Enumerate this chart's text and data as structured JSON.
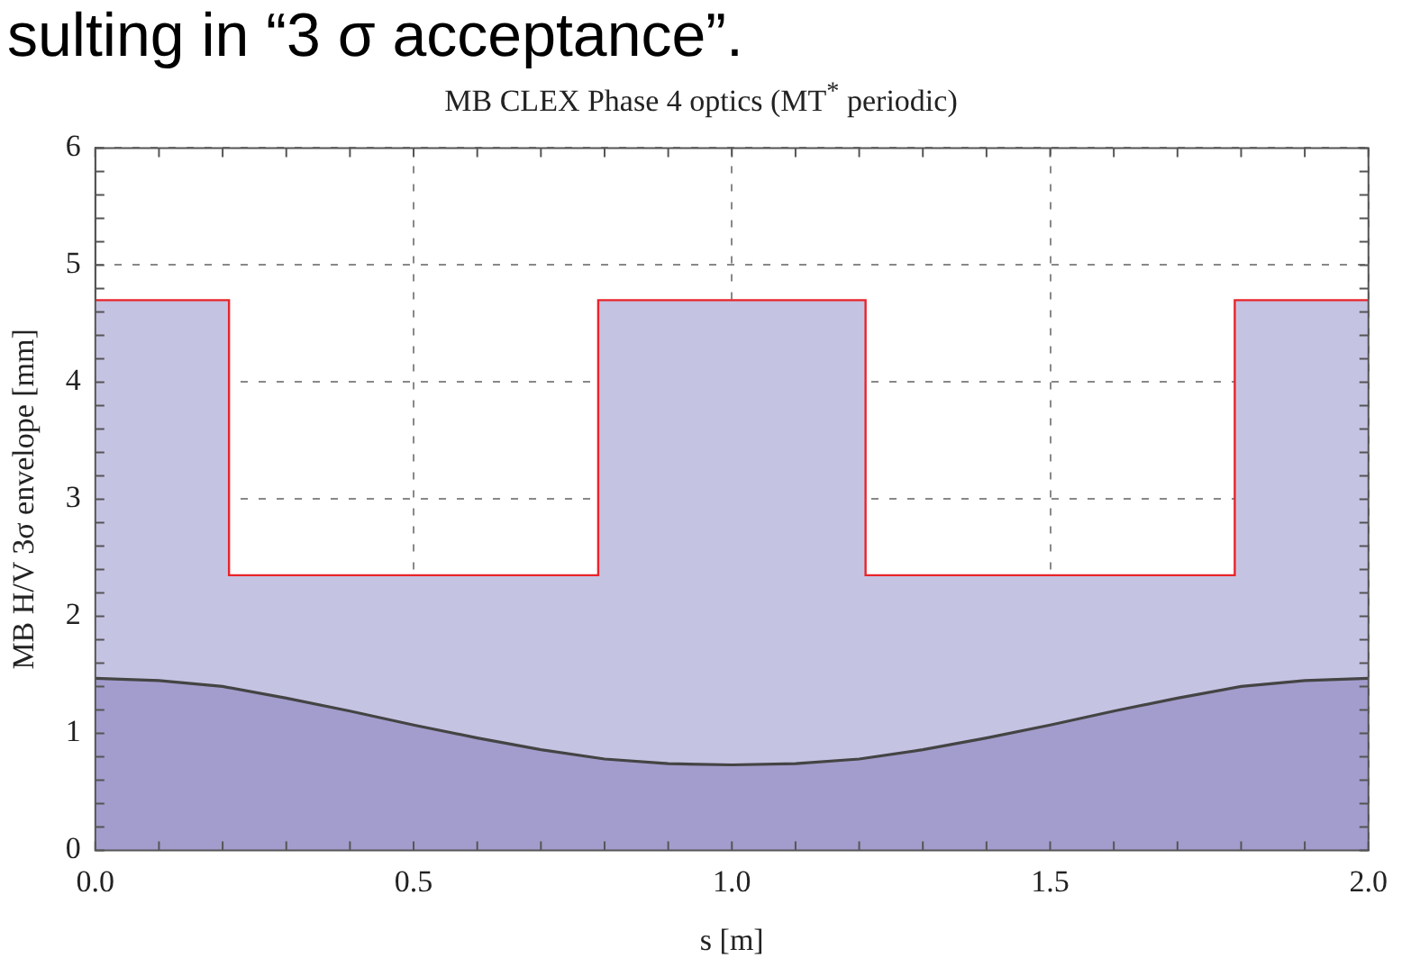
{
  "chart_data": {
    "type": "area",
    "title": "MB CLEX Phase 4 optics (MT$^{*}$ periodic)",
    "xlabel": "s [m]",
    "ylabel": "MB H/V 3σ envelope [mm]",
    "annotations": [
      "sulting in “3 σ acceptance”."
    ],
    "xlim": [
      0,
      2
    ],
    "ylim": [
      0,
      6
    ],
    "xticks": [
      {
        "value": 0,
        "label": "0.0"
      },
      {
        "value": 0.1,
        "label": null
      },
      {
        "value": 0.2,
        "label": null
      },
      {
        "value": 0.3,
        "label": null
      },
      {
        "value": 0.4,
        "label": null
      },
      {
        "value": 0.5,
        "label": "0.5"
      },
      {
        "value": 0.6,
        "label": null
      },
      {
        "value": 0.7,
        "label": null
      },
      {
        "value": 0.8,
        "label": null
      },
      {
        "value": 0.9,
        "label": null
      },
      {
        "value": 1,
        "label": "1.0"
      },
      {
        "value": 1.1,
        "label": null
      },
      {
        "value": 1.2,
        "label": null
      },
      {
        "value": 1.3,
        "label": null
      },
      {
        "value": 1.4,
        "label": null
      },
      {
        "value": 1.5,
        "label": "1.5"
      },
      {
        "value": 1.6,
        "label": null
      },
      {
        "value": 1.7,
        "label": null
      },
      {
        "value": 1.8,
        "label": null
      },
      {
        "value": 1.9,
        "label": null
      },
      {
        "value": 2,
        "label": "2.0"
      }
    ],
    "yticks": [
      0,
      {
        "value": 0.2,
        "label": null
      },
      {
        "value": 0.4,
        "label": null
      },
      {
        "value": 0.6,
        "label": null
      },
      {
        "value": 0.8,
        "label": null
      },
      1,
      {
        "value": 1.2,
        "label": null
      },
      {
        "value": 1.4,
        "label": null
      },
      {
        "value": 1.6,
        "label": null
      },
      {
        "value": 1.8,
        "label": null
      },
      2,
      {
        "value": 2.2,
        "label": null
      },
      {
        "value": 2.4,
        "label": null
      },
      {
        "value": 2.6,
        "label": null
      },
      {
        "value": 2.8,
        "label": null
      },
      3,
      {
        "value": 3.2,
        "label": null
      },
      {
        "value": 3.4,
        "label": null
      },
      {
        "value": 3.6,
        "label": null
      },
      {
        "value": 3.8,
        "label": null
      },
      4,
      {
        "value": 4.2,
        "label": null
      },
      {
        "value": 4.4,
        "label": null
      },
      {
        "value": 4.6,
        "label": null
      },
      {
        "value": 4.8,
        "label": null
      },
      5,
      {
        "value": 5.2,
        "label": null
      },
      {
        "value": 5.4,
        "label": null
      },
      {
        "value": 5.6,
        "label": null
      },
      {
        "value": 5.8,
        "label": null
      },
      6
    ],
    "grid": true,
    "series": [
      {
        "color": "#c5c3e2",
        "x": [
          0,
          0.21,
          0.21,
          0.79,
          0.79,
          1.21,
          1.21,
          1.79,
          1.79,
          2.0
        ],
        "values": [
          4.7,
          4.7,
          2.35,
          2.35,
          4.7,
          4.7,
          2.35,
          2.35,
          4.7,
          4.7
        ]
      },
      {
        "color": "#a29dcc",
        "x": [
          0,
          0.1,
          0.2,
          0.3,
          0.4,
          0.5,
          0.6,
          0.7,
          0.8,
          0.9,
          1.0,
          1.1,
          1.2,
          1.3,
          1.4,
          1.5,
          1.6,
          1.7,
          1.8,
          1.9,
          2.0
        ],
        "values": [
          1.47,
          1.45,
          1.4,
          1.3,
          1.19,
          1.07,
          0.96,
          0.86,
          0.78,
          0.74,
          0.73,
          0.74,
          0.78,
          0.86,
          0.96,
          1.07,
          1.19,
          1.3,
          1.4,
          1.45,
          1.47
        ]
      }
    ]
  }
}
